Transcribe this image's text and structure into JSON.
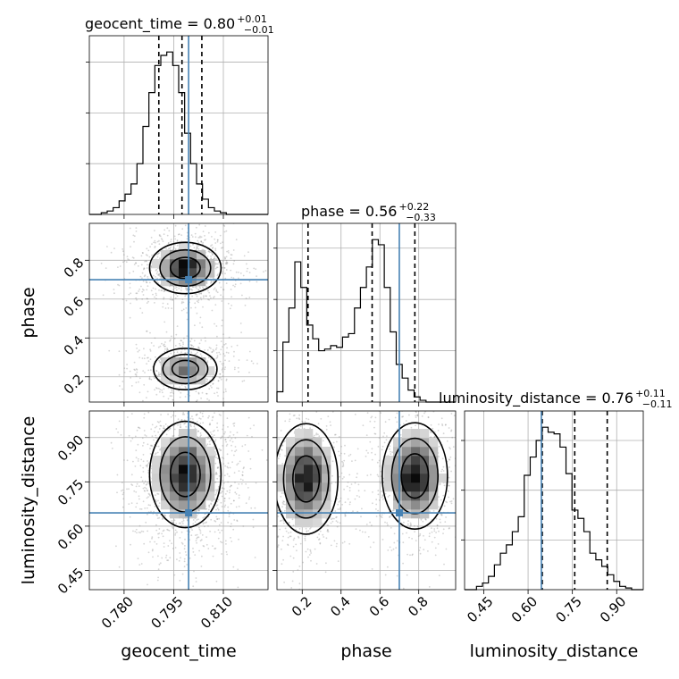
{
  "chart_data": {
    "type": "corner",
    "parameters": [
      "geocent_time",
      "phase",
      "luminosity_distance"
    ],
    "titles": {
      "geocent_time": {
        "prefix": "geocent_time = ",
        "median": "0.80",
        "plus": "+0.01",
        "minus": "−0.01"
      },
      "phase": {
        "prefix": "phase = ",
        "median": "0.56",
        "plus": "+0.22",
        "minus": "−0.33"
      },
      "luminosity_distance": {
        "prefix": "luminosity_distance = ",
        "median": "0.76",
        "plus": "+0.11",
        "minus": "−0.11"
      }
    },
    "ranges": {
      "geocent_time": [
        0.7695,
        0.8235
      ],
      "phase": [
        0.07,
        0.99
      ],
      "luminosity_distance": [
        0.385,
        0.99
      ]
    },
    "tick_labels": {
      "geocent_time": [
        "0.780",
        "0.795",
        "0.810"
      ],
      "phase": [
        "0.2",
        "0.4",
        "0.6",
        "0.8"
      ],
      "luminosity_distance": [
        "0.45",
        "0.60",
        "0.75",
        "0.90"
      ]
    },
    "truths": {
      "geocent_time": 0.7995,
      "phase": 0.7,
      "luminosity_distance": 0.645
    },
    "quantiles": {
      "geocent_time": [
        0.7905,
        0.7975,
        0.8035
      ],
      "phase": [
        0.23,
        0.56,
        0.78
      ],
      "luminosity_distance": [
        0.648,
        0.758,
        0.868
      ]
    },
    "histograms": {
      "geocent_time": {
        "edges_start": 0.7695,
        "bin_width": 0.0018,
        "values": [
          0,
          0,
          0.01,
          0.02,
          0.04,
          0.08,
          0.12,
          0.18,
          0.3,
          0.52,
          0.72,
          0.88,
          0.94,
          0.96,
          0.88,
          0.72,
          0.48,
          0.3,
          0.18,
          0.09,
          0.04,
          0.02,
          0.01,
          0,
          0,
          0,
          0,
          0,
          0,
          0
        ]
      },
      "phase": {
        "edges_start": 0.07,
        "bin_width": 0.0307,
        "values": [
          0.06,
          0.35,
          0.55,
          0.82,
          0.67,
          0.45,
          0.37,
          0.3,
          0.31,
          0.33,
          0.32,
          0.38,
          0.4,
          0.55,
          0.67,
          0.79,
          0.95,
          0.92,
          0.67,
          0.41,
          0.22,
          0.14,
          0.07,
          0.03,
          0.01,
          0,
          0,
          0,
          0,
          0
        ]
      },
      "luminosity_distance": {
        "edges_start": 0.385,
        "bin_width": 0.0202,
        "values": [
          0,
          0,
          0.02,
          0.04,
          0.08,
          0.15,
          0.22,
          0.27,
          0.35,
          0.44,
          0.69,
          0.8,
          0.9,
          0.98,
          0.95,
          0.94,
          0.86,
          0.7,
          0.48,
          0.43,
          0.35,
          0.22,
          0.18,
          0.14,
          0.09,
          0.05,
          0.02,
          0.01,
          0,
          0
        ]
      }
    },
    "density_2d": {
      "time_phase": {
        "x": "geocent_time",
        "y": "phase",
        "modes": [
          {
            "x": 0.7985,
            "y": 0.76,
            "sx": 0.0045,
            "sy": 0.055,
            "w": 1.0
          },
          {
            "x": 0.7985,
            "y": 0.24,
            "sx": 0.0045,
            "sy": 0.05,
            "w": 0.55
          }
        ]
      },
      "time_distance": {
        "x": "geocent_time",
        "y": "luminosity_distance",
        "modes": [
          {
            "x": 0.7985,
            "y": 0.775,
            "sx": 0.0045,
            "sy": 0.075,
            "w": 1.0
          }
        ]
      },
      "phase_distance": {
        "x": "phase",
        "y": "luminosity_distance",
        "modes": [
          {
            "x": 0.22,
            "y": 0.76,
            "sx": 0.07,
            "sy": 0.08,
            "w": 0.9
          },
          {
            "x": 0.78,
            "y": 0.77,
            "sx": 0.07,
            "sy": 0.075,
            "w": 1.0
          }
        ]
      }
    },
    "sample_points_per_panel": 1500
  }
}
